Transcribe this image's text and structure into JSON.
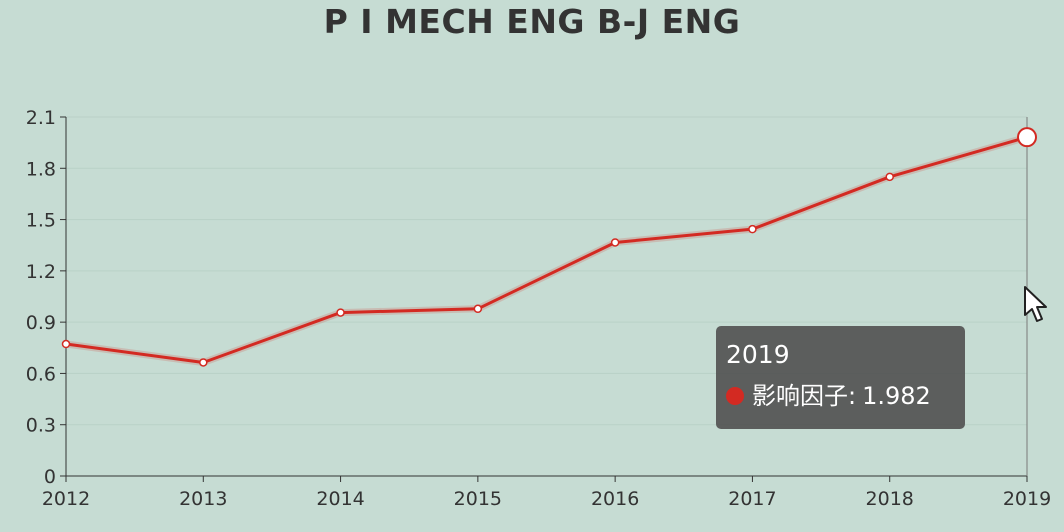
{
  "chart_data": {
    "type": "line",
    "title": "P I MECH ENG B-J ENG",
    "xlabel": "",
    "ylabel": "",
    "categories": [
      "2012",
      "2013",
      "2014",
      "2015",
      "2016",
      "2017",
      "2018",
      "2019"
    ],
    "series": [
      {
        "name": "影响因子",
        "values": [
          0.772,
          0.664,
          0.956,
          0.978,
          1.366,
          1.444,
          1.75,
          1.982
        ],
        "color": "#d32a22"
      }
    ],
    "y_ticks": [
      "0",
      "0.3",
      "0.6",
      "0.9",
      "1.2",
      "1.5",
      "1.8",
      "2.1"
    ],
    "ylim": [
      0,
      2.1
    ],
    "grid": true,
    "legend": "none",
    "highlighted_index": 7
  },
  "tooltip": {
    "title": "2019",
    "series_name": "影响因子",
    "separator": ":",
    "value": "1.982"
  },
  "colors": {
    "background": "#c6dcd3",
    "line": "#d32a22",
    "axis": "#333333",
    "grid": "#b9d1c7"
  },
  "icons": {
    "cursor": "arrow-cursor-icon"
  }
}
